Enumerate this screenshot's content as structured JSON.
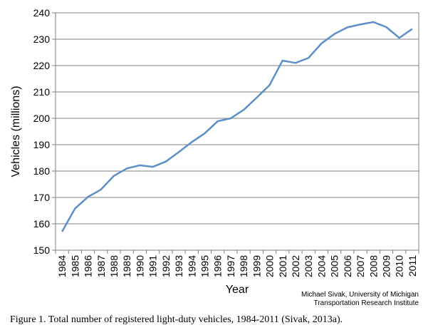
{
  "chart_data": {
    "type": "line",
    "xlabel": "Year",
    "ylabel": "Vehicles (millions)",
    "ylim": [
      150,
      240
    ],
    "yticks": [
      150,
      160,
      170,
      180,
      190,
      200,
      210,
      220,
      230,
      240
    ],
    "grid": true,
    "x": [
      "1984",
      "1985",
      "1986",
      "1987",
      "1988",
      "1989",
      "1990",
      "1991",
      "1992",
      "1993",
      "1994",
      "1995",
      "1996",
      "1997",
      "1998",
      "1999",
      "2000",
      "2001",
      "2002",
      "2003",
      "2004",
      "2005",
      "2006",
      "2007",
      "2008",
      "2009",
      "2010",
      "2011"
    ],
    "series": [
      {
        "values": [
          157.0,
          165.8,
          170.2,
          173.0,
          178.2,
          181.0,
          182.2,
          181.6,
          183.6,
          187.2,
          191.0,
          194.3,
          198.9,
          200.0,
          203.2,
          207.8,
          212.6,
          221.9,
          221.0,
          222.9,
          228.4,
          232.0,
          234.5,
          235.6,
          236.5,
          234.6,
          230.5,
          233.9
        ],
        "color": "#5b8fc7"
      }
    ],
    "credit_line1": "Michael Sivak, University of Michigan",
    "credit_line2": "Transportation Research Institute"
  },
  "caption": "Figure 1.  Total number of registered light-duty vehicles, 1984-2011 (Sivak, 2013a)."
}
